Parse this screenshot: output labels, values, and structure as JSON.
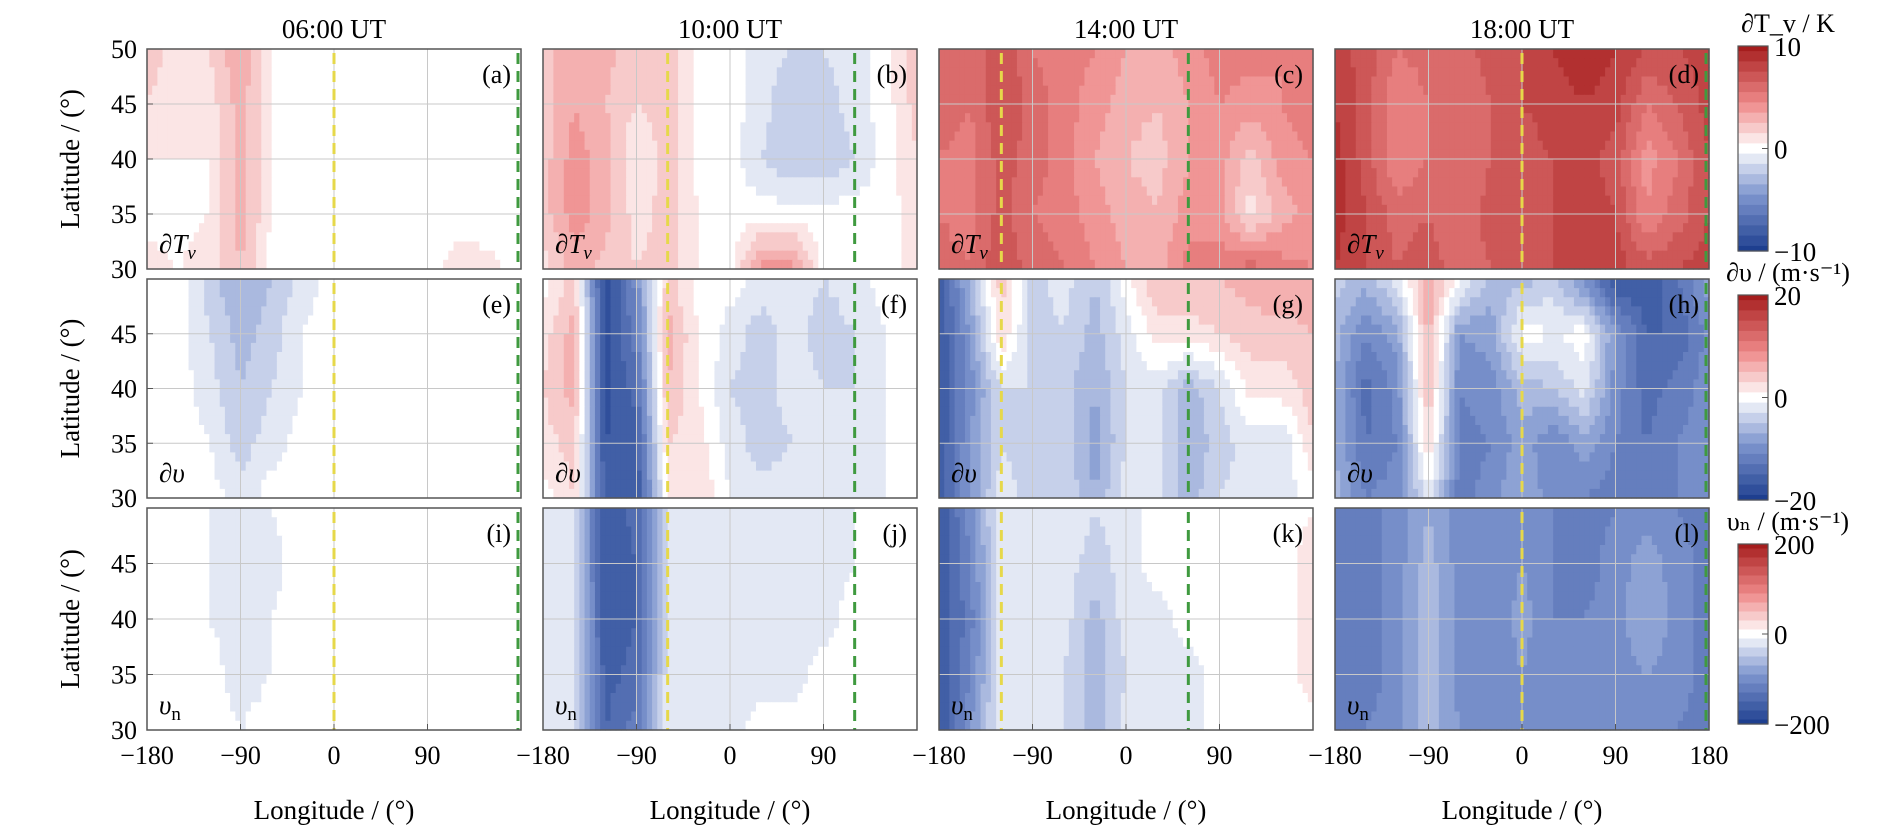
{
  "chart_data": {
    "type": "heatmap",
    "grid": true,
    "columns": [
      {
        "title": "06:00 UT",
        "terminator_lon": 0,
        "dusk_lon": 180
      },
      {
        "title": "10:00 UT",
        "terminator_lon": -60,
        "dusk_lon": 120
      },
      {
        "title": "14:00 UT",
        "terminator_lon": -120,
        "dusk_lon": 60
      },
      {
        "title": "18:00 UT",
        "terminator_lon": 0,
        "dusk_lon": 180
      }
    ],
    "rows": [
      {
        "label": "∂T",
        "sub": "v",
        "sub_italic": true,
        "ylabel": "Latitude / (°)",
        "ylim": [
          30,
          50
        ],
        "yticks": [
          30,
          35,
          40,
          45,
          50
        ],
        "colorbar": {
          "label": "∂T_v / K",
          "ticks": [
            10,
            0,
            -10
          ],
          "range": [
            -10,
            10
          ]
        }
      },
      {
        "label": "∂υ",
        "sub": "",
        "sub_italic": false,
        "ylabel": "Latitude / (°)",
        "ylim": [
          30,
          50
        ],
        "yticks": [
          30,
          35,
          40,
          45
        ],
        "colorbar": {
          "label": "∂υ / (m·s⁻¹)",
          "ticks": [
            20,
            0,
            -20
          ],
          "range": [
            -20,
            20
          ]
        }
      },
      {
        "label": "υ",
        "sub": "n",
        "sub_italic": false,
        "ylabel": "Latitude / (°)",
        "ylim": [
          30,
          50
        ],
        "yticks": [
          30,
          35,
          40,
          45
        ],
        "colorbar": {
          "label": "υₙ / (m·s⁻¹)",
          "ticks": [
            200,
            0,
            -200
          ],
          "range": [
            -200,
            200
          ]
        }
      }
    ],
    "panel_letters": [
      "(a)",
      "(b)",
      "(c)",
      "(d)",
      "(e)",
      "(f)",
      "(g)",
      "(h)",
      "(i)",
      "(j)",
      "(k)",
      "(l)"
    ],
    "xlabel": "Longitude / (°)",
    "xlim": [
      -180,
      180
    ],
    "xtick_values": [
      -180,
      -90,
      0,
      90,
      180
    ],
    "xtick_labels": [
      "−180",
      "−90",
      "0",
      "90",
      "180"
    ],
    "lat_samples": [
      30,
      35,
      40,
      45,
      50
    ],
    "lon_samples": [
      -180,
      -150,
      -120,
      -90,
      -60,
      -30,
      0,
      30,
      60,
      90,
      120,
      150,
      180
    ],
    "panels": [
      {
        "id": "a",
        "values": [
          [
            0.1,
            0.05,
            0.1,
            0.25,
            0,
            0,
            0,
            0,
            0,
            0,
            0.1,
            0.08,
            0
          ],
          [
            0,
            0,
            0.05,
            0.3,
            0.05,
            0,
            0,
            0,
            0,
            0,
            0,
            0,
            0
          ],
          [
            0.05,
            0.05,
            0.05,
            0.3,
            0.05,
            0,
            0,
            0,
            0,
            0,
            0,
            0,
            0
          ],
          [
            0.15,
            0.1,
            0.1,
            0.3,
            0.05,
            0,
            0,
            0,
            0,
            0,
            0,
            0,
            0
          ],
          [
            0.2,
            0.1,
            0.15,
            0.35,
            0.05,
            0,
            0,
            0,
            0,
            0,
            0,
            0,
            0
          ]
        ]
      },
      {
        "id": "b",
        "values": [
          [
            0.1,
            0.3,
            0.2,
            0.15,
            0.2,
            0.05,
            0,
            0.4,
            0.4,
            0,
            0,
            0,
            0.1
          ],
          [
            0.2,
            0.4,
            0.3,
            0.1,
            0.2,
            0.05,
            0,
            0,
            0,
            0,
            0,
            0,
            0.1
          ],
          [
            0.2,
            0.4,
            0.3,
            0.05,
            0.2,
            0,
            0,
            -0.15,
            -0.25,
            -0.25,
            -0.15,
            0,
            0.15
          ],
          [
            0.2,
            0.35,
            0.25,
            0.15,
            0.2,
            0,
            0,
            -0.1,
            -0.25,
            -0.2,
            -0.1,
            0,
            0.2
          ],
          [
            0.2,
            0.35,
            0.3,
            0.15,
            0.2,
            0,
            0,
            -0.1,
            -0.15,
            -0.15,
            -0.1,
            0,
            0.25
          ]
        ]
      },
      {
        "id": "c",
        "values": [
          [
            0.6,
            0.55,
            0.75,
            0.6,
            0.55,
            0.45,
            0.35,
            0.3,
            0.5,
            0.5,
            0.6,
            0.5,
            0.45
          ],
          [
            0.55,
            0.5,
            0.7,
            0.55,
            0.5,
            0.4,
            0.3,
            0.25,
            0.4,
            0.4,
            0.1,
            0.3,
            0.4
          ],
          [
            0.55,
            0.5,
            0.7,
            0.6,
            0.5,
            0.35,
            0.25,
            0.2,
            0.35,
            0.4,
            0.2,
            0.4,
            0.45
          ],
          [
            0.6,
            0.55,
            0.75,
            0.6,
            0.5,
            0.4,
            0.3,
            0.25,
            0.35,
            0.45,
            0.4,
            0.45,
            0.5
          ],
          [
            0.6,
            0.55,
            0.75,
            0.55,
            0.5,
            0.45,
            0.35,
            0.3,
            0.4,
            0.5,
            0.5,
            0.45,
            0.5
          ]
        ]
      },
      {
        "id": "d",
        "values": [
          [
            0.85,
            0.75,
            0.65,
            0.7,
            0.6,
            0.65,
            0.7,
            0.75,
            0.8,
            0.8,
            0.7,
            0.75,
            0.8
          ],
          [
            0.9,
            0.75,
            0.6,
            0.65,
            0.55,
            0.7,
            0.7,
            0.75,
            0.8,
            0.75,
            0.45,
            0.6,
            0.75
          ],
          [
            0.9,
            0.7,
            0.45,
            0.55,
            0.55,
            0.65,
            0.7,
            0.75,
            0.8,
            0.7,
            0.4,
            0.55,
            0.75
          ],
          [
            0.85,
            0.7,
            0.45,
            0.55,
            0.55,
            0.65,
            0.75,
            0.8,
            0.85,
            0.8,
            0.55,
            0.65,
            0.8
          ],
          [
            0.8,
            0.7,
            0.55,
            0.6,
            0.6,
            0.7,
            0.75,
            0.85,
            0.9,
            0.85,
            0.75,
            0.75,
            0.8
          ]
        ]
      },
      {
        "id": "e",
        "values": [
          [
            0,
            0,
            0,
            -0.1,
            0,
            0,
            0,
            0,
            0,
            0,
            0,
            0,
            0
          ],
          [
            0,
            0,
            -0.05,
            -0.2,
            -0.1,
            0,
            0,
            0,
            0,
            0,
            0,
            0,
            0
          ],
          [
            0,
            0,
            -0.1,
            -0.25,
            -0.15,
            -0.05,
            0,
            0,
            0,
            0,
            0,
            0,
            0
          ],
          [
            0,
            0,
            -0.15,
            -0.3,
            -0.2,
            -0.05,
            0,
            0,
            0,
            0,
            0,
            0,
            0
          ],
          [
            0,
            0,
            -0.2,
            -0.35,
            -0.25,
            -0.1,
            0,
            0,
            0,
            0,
            0,
            0,
            0
          ]
        ]
      },
      {
        "id": "f",
        "values": [
          [
            0,
            0.15,
            -0.8,
            -0.85,
            0.05,
            0.15,
            -0.05,
            -0.1,
            -0.1,
            -0.1,
            -0.1,
            -0.05,
            0
          ],
          [
            0.1,
            0.2,
            -0.85,
            -0.8,
            0.15,
            0.1,
            -0.1,
            -0.2,
            -0.15,
            -0.15,
            -0.1,
            -0.05,
            0
          ],
          [
            0.15,
            0.3,
            -0.9,
            -0.7,
            0.25,
            0.05,
            -0.15,
            -0.2,
            -0.1,
            -0.15,
            -0.15,
            -0.05,
            0
          ],
          [
            0.1,
            0.3,
            -0.9,
            -0.6,
            0.3,
            0.05,
            -0.1,
            -0.2,
            -0.1,
            -0.2,
            -0.15,
            -0.05,
            0
          ],
          [
            0,
            0.2,
            -0.95,
            -0.5,
            0.2,
            0,
            0,
            -0.1,
            -0.1,
            -0.15,
            -0.1,
            0,
            0
          ]
        ]
      },
      {
        "id": "g",
        "values": [
          [
            -0.85,
            -0.45,
            -0.1,
            -0.2,
            -0.15,
            -0.35,
            -0.1,
            -0.1,
            -0.3,
            -0.15,
            -0.1,
            -0.1,
            0
          ],
          [
            -0.85,
            -0.45,
            -0.15,
            -0.2,
            -0.2,
            -0.4,
            -0.15,
            -0.1,
            -0.35,
            -0.2,
            -0.1,
            -0.15,
            0.15
          ],
          [
            -0.85,
            -0.5,
            -0.15,
            -0.15,
            -0.2,
            -0.35,
            -0.15,
            -0.1,
            -0.3,
            -0.15,
            0.1,
            0.1,
            0.2
          ],
          [
            -0.85,
            -0.45,
            0.15,
            -0.2,
            -0.15,
            -0.3,
            -0.1,
            0.1,
            0.1,
            0.15,
            0.2,
            0.2,
            0.25
          ],
          [
            -0.85,
            -0.3,
            0.2,
            -0.2,
            -0.1,
            -0.25,
            0,
            0.25,
            0.25,
            0.25,
            0.3,
            0.35,
            0.3
          ]
        ]
      },
      {
        "id": "h",
        "values": [
          [
            -0.3,
            -0.55,
            -0.5,
            -0.1,
            -0.6,
            -0.5,
            -0.35,
            -0.5,
            -0.55,
            -0.6,
            -0.6,
            -0.55,
            -0.45
          ],
          [
            -0.35,
            -0.65,
            -0.55,
            0.15,
            -0.6,
            -0.55,
            -0.4,
            -0.55,
            -0.4,
            -0.55,
            -0.65,
            -0.55,
            -0.5
          ],
          [
            -0.35,
            -0.7,
            -0.5,
            0.25,
            -0.55,
            -0.5,
            -0.3,
            -0.25,
            -0.1,
            -0.5,
            -0.7,
            -0.6,
            -0.5
          ],
          [
            -0.3,
            -0.55,
            -0.4,
            0.3,
            -0.45,
            -0.4,
            0,
            -0.05,
            0,
            -0.45,
            -0.75,
            -0.75,
            -0.5
          ],
          [
            -0.2,
            -0.3,
            -0.1,
            0.35,
            0,
            -0.3,
            -0.3,
            -0.2,
            -0.5,
            -0.85,
            -0.85,
            -0.65,
            -0.4
          ]
        ]
      },
      {
        "id": "i",
        "values": [
          [
            0,
            0,
            0,
            -0.05,
            0,
            0,
            0,
            0,
            0,
            0,
            0,
            0,
            0
          ],
          [
            0,
            0,
            0,
            -0.1,
            -0.05,
            0,
            0,
            0,
            0,
            0,
            0,
            0,
            0
          ],
          [
            0,
            0,
            -0.05,
            -0.12,
            -0.05,
            0,
            0,
            0,
            0,
            0,
            0,
            0,
            0
          ],
          [
            0,
            0,
            -0.05,
            -0.15,
            -0.08,
            0,
            0,
            0,
            0,
            0,
            0,
            0,
            0
          ],
          [
            0,
            0,
            -0.05,
            -0.12,
            -0.05,
            0,
            0,
            0,
            0,
            0,
            0,
            0,
            0
          ]
        ]
      },
      {
        "id": "j",
        "values": [
          [
            -0.05,
            -0.1,
            -0.75,
            -0.6,
            -0.1,
            -0.1,
            -0.1,
            0,
            0,
            0,
            0,
            0,
            0
          ],
          [
            -0.05,
            -0.1,
            -0.8,
            -0.7,
            -0.1,
            -0.1,
            -0.1,
            -0.1,
            -0.1,
            0,
            0,
            0,
            0
          ],
          [
            -0.05,
            -0.1,
            -0.85,
            -0.75,
            -0.1,
            -0.1,
            -0.1,
            -0.1,
            -0.1,
            -0.1,
            0,
            0,
            0
          ],
          [
            -0.05,
            -0.15,
            -0.85,
            -0.75,
            -0.1,
            -0.1,
            -0.1,
            -0.1,
            -0.1,
            -0.1,
            -0.05,
            0,
            0
          ],
          [
            -0.05,
            -0.15,
            -0.85,
            -0.7,
            -0.1,
            -0.1,
            -0.1,
            -0.1,
            -0.1,
            -0.1,
            -0.05,
            0,
            0
          ]
        ]
      },
      {
        "id": "k",
        "values": [
          [
            -0.85,
            -0.45,
            -0.05,
            -0.15,
            -0.15,
            -0.3,
            -0.1,
            -0.05,
            -0.1,
            0,
            0,
            0,
            0
          ],
          [
            -0.85,
            -0.55,
            -0.1,
            -0.15,
            -0.15,
            -0.3,
            -0.15,
            -0.1,
            -0.1,
            0,
            0,
            0,
            0.1
          ],
          [
            -0.85,
            -0.6,
            -0.1,
            -0.1,
            -0.1,
            -0.3,
            -0.1,
            -0.1,
            0,
            0,
            0,
            0,
            0.1
          ],
          [
            -0.85,
            -0.55,
            -0.1,
            -0.1,
            -0.1,
            -0.2,
            -0.1,
            0,
            0,
            0,
            0,
            0,
            0.1
          ],
          [
            -0.85,
            -0.5,
            -0.05,
            -0.1,
            -0.05,
            -0.15,
            -0.1,
            0,
            0,
            0,
            0,
            0,
            0.05
          ]
        ]
      },
      {
        "id": "l",
        "values": [
          [
            -0.6,
            -0.55,
            -0.5,
            -0.3,
            -0.45,
            -0.5,
            -0.45,
            -0.5,
            -0.55,
            -0.55,
            -0.5,
            -0.55,
            -0.6
          ],
          [
            -0.65,
            -0.6,
            -0.5,
            -0.3,
            -0.5,
            -0.55,
            -0.45,
            -0.55,
            -0.55,
            -0.5,
            -0.45,
            -0.5,
            -0.6
          ],
          [
            -0.65,
            -0.6,
            -0.5,
            -0.25,
            -0.5,
            -0.55,
            -0.4,
            -0.55,
            -0.55,
            -0.5,
            -0.35,
            -0.5,
            -0.6
          ],
          [
            -0.65,
            -0.6,
            -0.5,
            -0.3,
            -0.5,
            -0.55,
            -0.45,
            -0.55,
            -0.6,
            -0.5,
            -0.4,
            -0.5,
            -0.6
          ],
          [
            -0.6,
            -0.6,
            -0.5,
            -0.35,
            -0.5,
            -0.55,
            -0.5,
            -0.55,
            -0.6,
            -0.55,
            -0.5,
            -0.55,
            -0.6
          ]
        ]
      }
    ],
    "colors": {
      "blue_dark": "#1e3f8f",
      "blue_mid": "#7f96cf",
      "white": "#ffffff",
      "red_mid": "#ee8888",
      "red_dark": "#a51d1d",
      "terminator_line": "#e6d84a",
      "dusk_line": "#3f9a3f"
    }
  }
}
